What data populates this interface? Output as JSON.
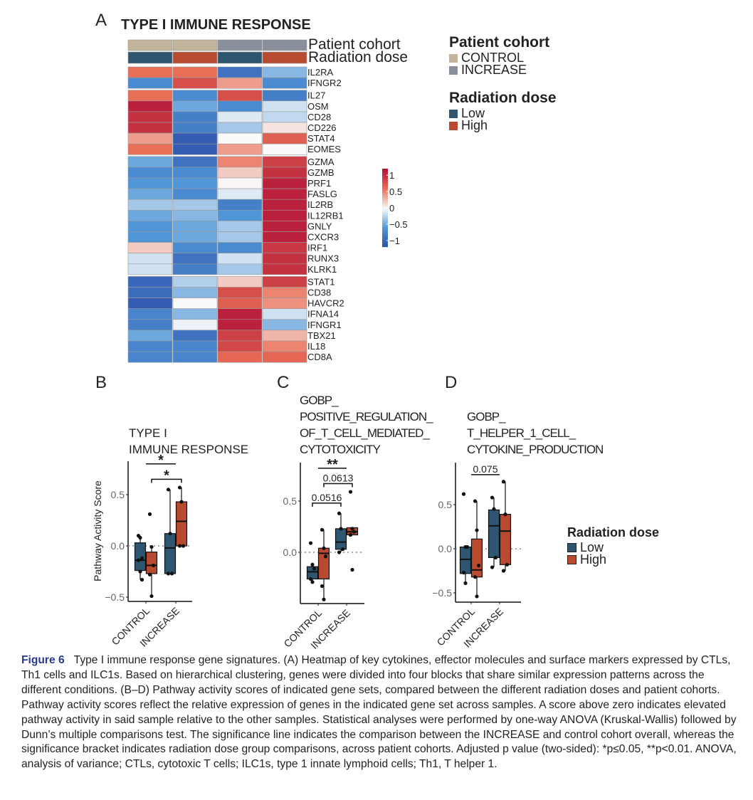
{
  "panels": {
    "a": "A",
    "b": "B",
    "c": "C",
    "d": "D"
  },
  "heatmap": {
    "title": "TYPE I IMMUNE RESPONSE",
    "annotation_labels": [
      "Patient cohort",
      "Radiation dose"
    ],
    "columns": [
      {
        "cohort": "CONTROL",
        "dose": "Low"
      },
      {
        "cohort": "CONTROL",
        "dose": "High"
      },
      {
        "cohort": "INCREASE",
        "dose": "Low"
      },
      {
        "cohort": "INCREASE",
        "dose": "High"
      }
    ],
    "block_ends": [
      2,
      8,
      19
    ],
    "genes": [
      "IL2RA",
      "IFNGR2",
      "IL27",
      "OSM",
      "CD28",
      "CD226",
      "STAT4",
      "EOMES",
      "GZMA",
      "GZMB",
      "PRF1",
      "FASLG",
      "IL2RB",
      "IL12RB1",
      "GNLY",
      "CXCR3",
      "IRF1",
      "RUNX3",
      "KLRK1",
      "STAT1",
      "CD38",
      "HAVCR2",
      "IFNA14",
      "IFNGR1",
      "TBX21",
      "IL18",
      "CD8A"
    ],
    "values": [
      [
        0.6,
        0.6,
        -0.9,
        -0.4
      ],
      [
        -0.7,
        0.8,
        0.4,
        -0.7
      ],
      [
        0.6,
        -0.7,
        0.8,
        -0.8
      ],
      [
        1.1,
        -0.5,
        -0.7,
        -0.15
      ],
      [
        1.0,
        -0.8,
        -0.1,
        -0.2
      ],
      [
        1.0,
        -0.8,
        -0.3,
        0.1
      ],
      [
        0.4,
        -1.1,
        0.0,
        0.7
      ],
      [
        0.6,
        -1.1,
        0.4,
        0.0
      ],
      [
        -0.5,
        -0.9,
        0.5,
        0.9
      ],
      [
        -0.7,
        -0.7,
        0.2,
        1.0
      ],
      [
        -0.6,
        -0.6,
        0.02,
        1.1
      ],
      [
        -0.5,
        -0.7,
        -0.1,
        1.1
      ],
      [
        -0.3,
        -0.3,
        -0.8,
        1.1
      ],
      [
        -0.5,
        -0.4,
        -0.6,
        1.1
      ],
      [
        -0.6,
        -0.5,
        -0.3,
        1.1
      ],
      [
        -0.6,
        -0.5,
        -0.3,
        1.1
      ],
      [
        0.2,
        -0.7,
        -0.7,
        0.95
      ],
      [
        -0.15,
        -0.9,
        -0.15,
        1.0
      ],
      [
        -0.15,
        -0.8,
        -0.3,
        1.0
      ],
      [
        -1.0,
        -0.25,
        0.2,
        0.9
      ],
      [
        -0.95,
        -0.4,
        0.8,
        0.5
      ],
      [
        -1.1,
        0.0,
        0.7,
        0.45
      ],
      [
        -0.75,
        -0.4,
        1.1,
        -0.15
      ],
      [
        -0.8,
        -0.05,
        1.1,
        -0.4
      ],
      [
        -0.5,
        -0.9,
        0.9,
        0.3
      ],
      [
        -0.75,
        -0.75,
        0.85,
        0.5
      ],
      [
        -0.75,
        -0.75,
        0.65,
        0.65
      ]
    ],
    "colorbar": {
      "ticks": [
        "1",
        "0.5",
        "0",
        "−0.5",
        "−1"
      ],
      "tick_values": [
        1,
        0.5,
        0,
        -0.5,
        -1
      ],
      "range": [
        -1.2,
        1.2
      ]
    }
  },
  "legend": {
    "cohort_title": "Patient cohort",
    "cohort_items": [
      {
        "label": "CONTROL",
        "color": "#c2b59b"
      },
      {
        "label": "INCREASE",
        "color": "#8a8f9c"
      }
    ],
    "dose_title": "Radiation dose",
    "dose_items": [
      {
        "label": "Low",
        "color": "#2e5670"
      },
      {
        "label": "High",
        "color": "#b84a30"
      }
    ]
  },
  "chart_data": [
    {
      "type": "box",
      "panel": "B",
      "title_lines": [
        "TYPE I",
        "IMMUNE RESPONSE"
      ],
      "ylabel": "Pathway Activity Score",
      "yticks": [
        "0.5",
        "0.0",
        "−0.5"
      ],
      "ytick_values": [
        0.5,
        0,
        -0.5
      ],
      "categories": [
        "CONTROL",
        "INCREASE"
      ],
      "boxes": [
        {
          "group": "CONTROL",
          "dose": "Low",
          "q1": -0.24,
          "median": -0.14,
          "q3": 0.03,
          "min": -0.33,
          "max": 0.1,
          "points": [
            0.1,
            0.08,
            -0.12,
            -0.14,
            -0.25,
            -0.33
          ]
        },
        {
          "group": "CONTROL",
          "dose": "High",
          "q1": -0.27,
          "median": -0.19,
          "q3": -0.06,
          "min": -0.49,
          "max": -0.01,
          "points": [
            0.31,
            -0.01,
            -0.19,
            -0.28,
            -0.49
          ]
        },
        {
          "group": "INCREASE",
          "dose": "Low",
          "q1": -0.27,
          "median": -0.02,
          "q3": 0.12,
          "min": -0.27,
          "max": 0.55,
          "points": [
            0.55,
            0.12,
            -0.27,
            -0.27
          ]
        },
        {
          "group": "INCREASE",
          "dose": "High",
          "q1": 0.0,
          "median": 0.24,
          "q3": 0.43,
          "min": 0.0,
          "max": 0.57,
          "points": [
            0.57,
            0.43,
            0.0,
            0.0
          ]
        }
      ],
      "significance": [
        {
          "label": "*",
          "type": "line",
          "from": "CONTROL",
          "to": "INCREASE",
          "y": 0.8
        },
        {
          "label": "*",
          "type": "bracket",
          "from": "CONTROL-High",
          "to": "INCREASE-High",
          "y": 0.65
        }
      ]
    },
    {
      "type": "box",
      "panel": "C",
      "title_lines": [
        "GOBP_",
        "POSITIVE_REGULATION_",
        "OF_T_CELL_MEDIATED_",
        "CYTOTOXICITY"
      ],
      "yticks": [
        "0.5",
        "0.0"
      ],
      "ytick_values": [
        0.5,
        0
      ],
      "categories": [
        "CONTROL",
        "INCREASE"
      ],
      "boxes": [
        {
          "group": "CONTROL",
          "dose": "Low",
          "q1": -0.26,
          "median": -0.19,
          "q3": -0.14,
          "min": -0.29,
          "max": -0.12,
          "points": [
            0.09,
            -0.12,
            -0.16,
            -0.26,
            -0.29
          ]
        },
        {
          "group": "CONTROL",
          "dose": "High",
          "q1": -0.26,
          "median": -0.01,
          "q3": 0.04,
          "min": -0.46,
          "max": 0.22,
          "points": [
            0.22,
            0.04,
            -0.04,
            -0.33,
            -0.46
          ]
        },
        {
          "group": "INCREASE",
          "dose": "Low",
          "q1": 0.03,
          "median": 0.1,
          "q3": 0.23,
          "min": 0.0,
          "max": 0.38,
          "points": [
            0.38,
            0.23,
            0.03,
            0.0
          ]
        },
        {
          "group": "INCREASE",
          "dose": "High",
          "q1": 0.17,
          "median": 0.2,
          "q3": 0.24,
          "min": 0.17,
          "max": 0.24,
          "points": [
            0.59,
            0.23,
            0.2,
            0.17,
            -0.17
          ]
        }
      ],
      "significance": [
        {
          "label": "**",
          "type": "line",
          "from": "CONTROL",
          "to": "INCREASE",
          "y": 0.82
        },
        {
          "label": "0.0613",
          "type": "bracket",
          "from": "CONTROL-High",
          "to": "INCREASE-High",
          "y": 0.67
        },
        {
          "label": "0.0516",
          "type": "bracket",
          "from": "CONTROL-Low",
          "to": "INCREASE-Low",
          "y": 0.48
        }
      ]
    },
    {
      "type": "box",
      "panel": "D",
      "title_lines": [
        "GOBP_",
        "T_HELPER_1_CELL_",
        "CYTOKINE_PRODUCTION"
      ],
      "yticks": [
        "0.5",
        "0.0",
        "−0.5"
      ],
      "ytick_values": [
        0.5,
        0,
        -0.5
      ],
      "categories": [
        "CONTROL",
        "INCREASE"
      ],
      "boxes": [
        {
          "group": "CONTROL",
          "dose": "Low",
          "q1": -0.28,
          "median": -0.12,
          "q3": 0.02,
          "min": -0.39,
          "max": 0.03,
          "points": [
            0.62,
            0.02,
            0.02,
            -0.27,
            -0.39
          ]
        },
        {
          "group": "CONTROL",
          "dose": "High",
          "q1": -0.32,
          "median": -0.24,
          "q3": 0.11,
          "min": -0.54,
          "max": 0.54,
          "points": [
            0.54,
            0.21,
            -0.19,
            -0.32,
            -0.54
          ]
        },
        {
          "group": "INCREASE",
          "dose": "Low",
          "q1": -0.1,
          "median": 0.26,
          "q3": 0.44,
          "min": -0.21,
          "max": 0.58,
          "points": [
            0.58,
            0.45,
            -0.1,
            -0.21
          ]
        },
        {
          "group": "INCREASE",
          "dose": "High",
          "q1": -0.18,
          "median": 0.2,
          "q3": 0.39,
          "min": -0.25,
          "max": 0.76,
          "points": [
            0.76,
            0.39,
            -0.18,
            -0.25
          ]
        }
      ],
      "significance": [
        {
          "label": "0.075",
          "type": "line",
          "from": "CONTROL",
          "to": "INCREASE",
          "y": 0.84
        }
      ]
    }
  ],
  "caption": {
    "label": "Figure 6",
    "text": "Type I immune response gene signatures. (A) Heatmap of key cytokines, effector molecules and surface markers expressed by CTLs, Th1 cells and ILC1s. Based on hierarchical clustering, genes were divided into four blocks that share similar expression patterns across the different conditions. (B–D) Pathway activity scores of indicated gene sets, compared between the different radiation doses and patient cohorts. Pathway activity scores reflect the relative expression of genes in the indicated gene set across samples. A score above zero indicates elevated pathway activity in said sample relative to the other samples. Statistical analyses were performed by one-way ANOVA (Kruskal-Wallis) followed by Dunn’s multiple comparisons test. The significance line indicates the comparison between the INCREASE and control cohort overall, whereas the significance bracket indicates radiation dose group comparisons, across patient cohorts. Adjusted p value (two-sided): *p≤0.05, **p<0.01. ANOVA, analysis of variance; CTLs, cytotoxic T cells; ILC1s, type 1 innate lymphoid cells; Th1, T helper 1."
  }
}
